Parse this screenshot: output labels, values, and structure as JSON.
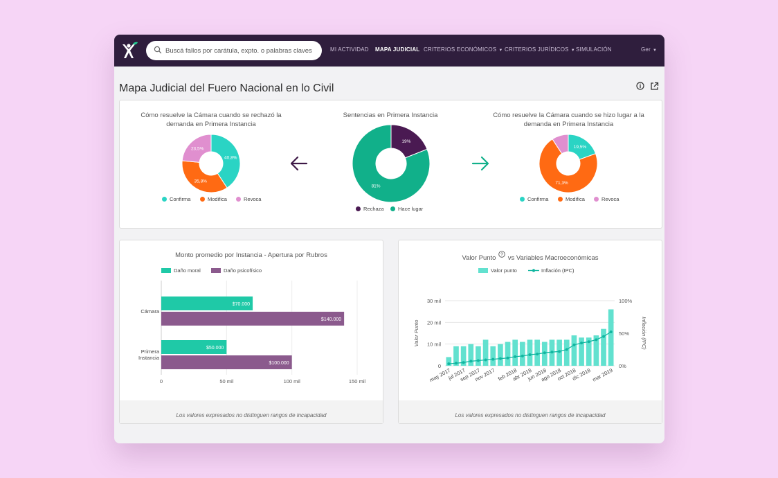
{
  "search": {
    "placeholder": "Buscá fallos por carátula, expto. o palabras claves"
  },
  "nav": {
    "items": [
      {
        "label": "MI ACTIVIDAD"
      },
      {
        "label": "MAPA JUDICIAL"
      },
      {
        "label": "CRITERIOS ECONÓMICOS"
      },
      {
        "label": "CRITERIOS JURÍDICOS"
      },
      {
        "label": "SIMULACIÓN"
      }
    ],
    "user": "Ger"
  },
  "page": {
    "title": "Mapa Judicial del Fuero Nacional en lo Civil"
  },
  "summary": {
    "left_title": "Cómo resuelve la Cámara cuando se rechazó la demanda en Primera Instancia",
    "center_title": "Sentencias en Primera Instancia",
    "right_title": "Cómo resuelve la Cámara cuando se hizo lugar a la demanda en Primera Instancia",
    "left_legend": [
      "Confirma",
      "Modifica",
      "Revoca"
    ],
    "center_legend": [
      "Rechaza",
      "Hace lugar"
    ],
    "right_legend": [
      "Confirma",
      "Modifica",
      "Revoca"
    ]
  },
  "colors": {
    "confirma": "#2ad4c4",
    "modifica": "#ff6a13",
    "revoca": "#e08fcf",
    "rechaza": "#4a1a52",
    "hace_lugar": "#11b08a",
    "dano_moral": "#1fc9a7",
    "dano_psicofisico": "#8b5a8d",
    "valor_punto": "#62e1cf",
    "inflacion": "#11b6a0"
  },
  "bars_card": {
    "title": "Monto promedio por Instancia - Apertura por Rubros",
    "note": "Los valores expresados no distinguen rangos de incapacidad"
  },
  "line_card": {
    "title": "Valor Punto",
    "title_suffix": "vs Variables Macroeconómicas",
    "note": "Los valores expresados no distinguen rangos de incapacidad"
  },
  "chart_data": [
    {
      "type": "pie",
      "title": "Cómo resuelve la Cámara cuando se rechazó la demanda en Primera Instancia",
      "categories": [
        "Confirma",
        "Modifica",
        "Revoca"
      ],
      "values": [
        40.8,
        35.8,
        23.5
      ],
      "labels": [
        "40,8%",
        "35,8%",
        "23,5%"
      ],
      "donut": true
    },
    {
      "type": "pie",
      "title": "Sentencias en Primera Instancia",
      "categories": [
        "Rechaza",
        "Hace lugar"
      ],
      "values": [
        19,
        81
      ],
      "labels": [
        "19%",
        "81%"
      ],
      "donut": true
    },
    {
      "type": "pie",
      "title": "Cómo resuelve la Cámara cuando se hizo lugar a la demanda en Primera Instancia",
      "categories": [
        "Confirma",
        "Modifica",
        "Revoca"
      ],
      "values": [
        19.5,
        71.3,
        9.2
      ],
      "labels": [
        "19,5%",
        "71,3%",
        ""
      ],
      "donut": true
    },
    {
      "type": "bar",
      "orientation": "horizontal",
      "title": "Monto promedio por Instancia - Apertura por Rubros",
      "categories": [
        "Cámara",
        "Primera Instancia"
      ],
      "series": [
        {
          "name": "Daño moral",
          "values": [
            70000,
            50000
          ],
          "labels": [
            "$70.000",
            "$50.000"
          ]
        },
        {
          "name": "Daño psicofísico",
          "values": [
            140000,
            100000
          ],
          "labels": [
            "$140.000",
            "$100.000"
          ]
        }
      ],
      "xlim": [
        0,
        150000
      ],
      "xticks": [
        "0",
        "50 mil",
        "100 mil",
        "150 mil"
      ],
      "legend": "top"
    },
    {
      "type": "bar",
      "title": "Valor Punto vs Variables Macroeconómicas",
      "x": [
        "may 2017",
        "jun 2017",
        "jul 2017",
        "ago 2017",
        "sep 2017",
        "oct 2017",
        "nov 2017",
        "dic 2017",
        "ene 2018",
        "feb 2018",
        "mar 2018",
        "abr 2018",
        "may 2018",
        "jun 2018",
        "jul 2018",
        "ago 2018",
        "sep 2018",
        "oct 2018",
        "nov 2018",
        "dic 2018",
        "ene 2019",
        "feb 2019",
        "mar 2019"
      ],
      "xtick_labels": [
        "may 2017",
        "jul 2017",
        "sep 2017",
        "nov 2017",
        "feb 2018",
        "abr 2018",
        "jun 2018",
        "ago 2018",
        "oct 2018",
        "dic 2018",
        "mar 2019"
      ],
      "series": [
        {
          "name": "Valor punto",
          "type": "bar",
          "axis": "left",
          "values": [
            4,
            9,
            9,
            10,
            9,
            12,
            9,
            10,
            11,
            12,
            11,
            12,
            12,
            11,
            12,
            12,
            12,
            14,
            13,
            13,
            14,
            17,
            26
          ]
        },
        {
          "name": "Inflación (IPC)",
          "type": "line",
          "axis": "right",
          "values": [
            3,
            4,
            5,
            7,
            8,
            9,
            10,
            11,
            12,
            14,
            15,
            17,
            18,
            20,
            21,
            22,
            25,
            32,
            35,
            37,
            40,
            45,
            52
          ]
        }
      ],
      "ylabel": "Valor Punto",
      "ylim": [
        0,
        30
      ],
      "yticks": [
        "0",
        "10 mil",
        "20 mil",
        "30 mil"
      ],
      "y2label": "Inflación (IPC)",
      "y2lim": [
        0,
        100
      ],
      "y2ticks": [
        "0%",
        "50%",
        "100%"
      ],
      "grid": true,
      "legend": "top"
    }
  ]
}
